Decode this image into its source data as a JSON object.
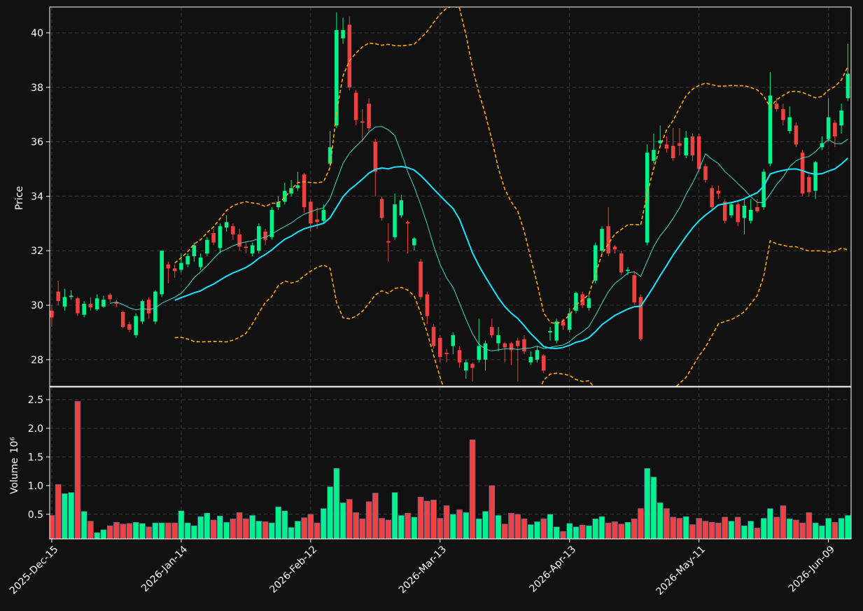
{
  "chart_data": {
    "type": "candlestick",
    "ylabel": "Price",
    "volume_ylabel": "Volume",
    "volume_exponent": "10⁶",
    "up_color": "#00f28a",
    "down_color": "#ee4141",
    "xlim": [
      -0.32,
      123.5
    ],
    "xticks": [
      {
        "value": 0,
        "label": "2025-Dec-15"
      },
      {
        "value": 20,
        "label": "2026-Jan-14"
      },
      {
        "value": 40,
        "label": "2026-Feb-12"
      },
      {
        "value": 60,
        "label": "2026-Mar-13"
      },
      {
        "value": 80,
        "label": "2026-Apr-13"
      },
      {
        "value": 100,
        "label": "2026-May-11"
      },
      {
        "value": 120,
        "label": "2026-Jun-09"
      }
    ],
    "ylim": [
      27.02,
      40.95
    ],
    "yticks": [
      28,
      30,
      32,
      34,
      36,
      38,
      40
    ],
    "volume_ylim": [
      0.07,
      2.72
    ],
    "volume_yticks": [
      0.5,
      {
        "value": 1,
        "label": "1.0"
      },
      1.5,
      {
        "value": 2,
        "label": "2.0"
      },
      2.5
    ],
    "grid": true,
    "moving_averages": [
      {
        "window": 10,
        "color": "#3fd9c8",
        "width": 1
      },
      {
        "window": 20,
        "color": "#14e6ff",
        "width": 2
      }
    ],
    "bollinger": {
      "window": 20,
      "num_std": 2,
      "color": "#ffa500"
    },
    "open": [
      29.8,
      30.5,
      29.95,
      30.3,
      30.25,
      29.65,
      30.05,
      29.85,
      29.95,
      30.38,
      30.1,
      29.75,
      29.3,
      28.9,
      29.4,
      30.2,
      29.4,
      30.4,
      31.5,
      31.35,
      31.3,
      31.5,
      31.8,
      31.4,
      31.9,
      32.65,
      32.1,
      32.85,
      32.9,
      32.6,
      32.15,
      31.9,
      32.0,
      32.7,
      32.5,
      33.6,
      33.8,
      34.1,
      34.3,
      34.8,
      33.8,
      33.15,
      33.1,
      35.2,
      36.6,
      39.8,
      40.3,
      37.8,
      36.75,
      37.4,
      36.0,
      33.9,
      32.35,
      32.5,
      33.3,
      33.05,
      32.2,
      31.6,
      30.4,
      29.2,
      28.8,
      28.25,
      28.5,
      28.35,
      27.6,
      27.85,
      28.0,
      28.0,
      29.2,
      28.6,
      28.6,
      28.6,
      28.7,
      28.75,
      27.9,
      28.0,
      28.15,
      29.0,
      28.7,
      29.4,
      29.1,
      29.8,
      30.4,
      29.9,
      30.9,
      32.0,
      32.9,
      32.15,
      31.9,
      31.25,
      31.1,
      30.3,
      32.3,
      35.3,
      35.95,
      35.9,
      35.85,
      35.95,
      35.5,
      36.2,
      36.2,
      35.1,
      34.3,
      34.2,
      33.8,
      33.3,
      33.7,
      33.2,
      33.1,
      33.6,
      33.6,
      35.2,
      37.4,
      37.2,
      36.4,
      36.6,
      35.6,
      34.7,
      34.2,
      35.8,
      36.1,
      36.7,
      36.6,
      37.6
    ],
    "high": [
      30.0,
      30.9,
      30.6,
      30.55,
      30.3,
      30.15,
      30.3,
      30.4,
      30.35,
      30.45,
      30.2,
      29.8,
      29.4,
      29.7,
      30.2,
      30.3,
      30.55,
      32.0,
      31.6,
      31.5,
      31.9,
      31.9,
      32.3,
      31.9,
      32.5,
      32.8,
      33.0,
      33.3,
      33.0,
      32.8,
      32.3,
      32.3,
      33.0,
      32.8,
      33.6,
      34.0,
      34.5,
      34.6,
      34.9,
      34.85,
      33.9,
      33.6,
      33.7,
      36.4,
      40.75,
      40.55,
      40.6,
      37.9,
      37.2,
      37.6,
      36.1,
      34.0,
      33.0,
      34.1,
      34.05,
      33.1,
      32.5,
      31.7,
      30.5,
      29.3,
      28.9,
      28.4,
      29.0,
      28.5,
      28.0,
      27.9,
      29.5,
      28.7,
      29.5,
      29.2,
      28.65,
      28.65,
      28.8,
      28.9,
      28.3,
      28.5,
      28.2,
      29.2,
      29.5,
      29.5,
      29.9,
      30.5,
      30.5,
      30.4,
      32.3,
      32.9,
      33.6,
      32.2,
      32.0,
      31.4,
      31.2,
      30.4,
      35.9,
      36.3,
      36.6,
      36.2,
      36.5,
      36.5,
      36.4,
      36.3,
      36.3,
      35.2,
      34.4,
      34.4,
      33.9,
      33.8,
      33.8,
      33.9,
      33.9,
      33.9,
      35.0,
      38.55,
      37.6,
      37.4,
      37.3,
      36.7,
      35.7,
      34.8,
      35.3,
      36.2,
      37.6,
      36.8,
      37.4,
      39.6
    ],
    "low": [
      29.2,
      30.0,
      29.8,
      30.2,
      29.6,
      29.55,
      29.8,
      29.8,
      29.9,
      30.1,
      29.95,
      29.15,
      29.0,
      28.8,
      29.3,
      29.5,
      29.3,
      30.3,
      30.8,
      31.0,
      31.2,
      31.4,
      31.6,
      31.3,
      31.8,
      32.2,
      31.9,
      32.7,
      32.4,
      32.0,
      31.9,
      31.8,
      31.9,
      32.2,
      32.4,
      33.5,
      33.7,
      34.0,
      34.2,
      33.4,
      32.7,
      32.8,
      33.0,
      35.1,
      36.5,
      39.6,
      37.9,
      36.6,
      36.0,
      36.4,
      34.0,
      33.1,
      31.6,
      32.4,
      33.2,
      31.9,
      32.0,
      30.2,
      29.3,
      28.4,
      27.9,
      27.9,
      28.2,
      27.7,
      27.3,
      27.2,
      27.9,
      27.6,
      28.8,
      28.3,
      27.9,
      27.8,
      27.2,
      28.2,
      27.8,
      27.9,
      27.5,
      28.7,
      28.6,
      29.1,
      29.0,
      29.7,
      29.9,
      29.8,
      30.8,
      31.9,
      31.8,
      31.9,
      31.1,
      31.1,
      30.0,
      28.7,
      32.2,
      35.2,
      35.8,
      35.6,
      35.3,
      35.5,
      35.4,
      35.3,
      34.9,
      34.5,
      33.5,
      33.9,
      33.0,
      33.2,
      32.9,
      32.6,
      33.0,
      33.4,
      33.5,
      35.1,
      37.1,
      36.6,
      36.3,
      35.8,
      34.0,
      34.0,
      33.9,
      35.7,
      36.0,
      35.8,
      36.3,
      37.5
    ],
    "close": [
      29.55,
      30.15,
      30.3,
      30.35,
      29.7,
      30.05,
      29.92,
      30.25,
      30.2,
      30.22,
      30.05,
      29.2,
      29.1,
      29.6,
      30.15,
      29.7,
      30.5,
      32.0,
      31.35,
      31.25,
      31.55,
      31.8,
      32.2,
      31.75,
      32.4,
      32.3,
      32.9,
      33.05,
      32.6,
      32.15,
      32.1,
      32.2,
      32.9,
      32.4,
      33.5,
      33.8,
      34.2,
      34.3,
      34.4,
      33.6,
      33.0,
      33.05,
      33.5,
      35.8,
      40.1,
      40.1,
      38.0,
      36.8,
      36.7,
      36.5,
      34.9,
      33.2,
      32.3,
      33.7,
      33.85,
      33.0,
      32.45,
      30.3,
      29.6,
      28.5,
      28.1,
      28.2,
      28.9,
      27.9,
      27.9,
      27.7,
      28.5,
      28.6,
      28.9,
      28.9,
      28.45,
      28.35,
      28.5,
      28.3,
      28.1,
      28.35,
      27.6,
      29.05,
      29.4,
      29.25,
      29.7,
      30.45,
      30.0,
      30.25,
      32.2,
      32.8,
      31.9,
      32.05,
      31.2,
      31.3,
      30.1,
      28.75,
      35.6,
      35.7,
      36.05,
      35.75,
      35.4,
      35.85,
      36.15,
      35.5,
      35.0,
      34.6,
      33.6,
      34.1,
      33.1,
      33.7,
      33.05,
      33.65,
      33.5,
      33.45,
      34.9,
      37.7,
      37.2,
      36.8,
      36.9,
      35.9,
      34.1,
      34.15,
      35.25,
      35.95,
      36.9,
      36.2,
      37.15,
      38.5
    ],
    "volume": [
      0.48,
      1.02,
      0.86,
      0.88,
      2.47,
      0.55,
      0.38,
      0.18,
      0.23,
      0.3,
      0.36,
      0.33,
      0.34,
      0.36,
      0.34,
      0.28,
      0.35,
      0.35,
      0.35,
      0.35,
      0.56,
      0.35,
      0.3,
      0.46,
      0.52,
      0.4,
      0.47,
      0.36,
      0.42,
      0.53,
      0.42,
      0.48,
      0.38,
      0.37,
      0.35,
      0.63,
      0.56,
      0.27,
      0.38,
      0.44,
      0.5,
      0.35,
      0.6,
      0.98,
      1.3,
      0.7,
      0.76,
      0.53,
      0.42,
      0.72,
      0.87,
      0.43,
      0.4,
      0.88,
      0.48,
      0.52,
      0.45,
      0.8,
      0.73,
      0.75,
      0.43,
      0.65,
      0.5,
      0.58,
      0.53,
      1.8,
      0.42,
      0.55,
      1.0,
      0.48,
      0.33,
      0.52,
      0.5,
      0.42,
      0.32,
      0.37,
      0.42,
      0.5,
      0.28,
      0.2,
      0.34,
      0.28,
      0.31,
      0.3,
      0.42,
      0.46,
      0.35,
      0.37,
      0.33,
      0.36,
      0.42,
      0.6,
      1.3,
      1.15,
      0.7,
      0.6,
      0.45,
      0.43,
      0.46,
      0.32,
      0.43,
      0.38,
      0.36,
      0.35,
      0.45,
      0.38,
      0.45,
      0.3,
      0.38,
      0.26,
      0.43,
      0.6,
      0.45,
      0.65,
      0.42,
      0.4,
      0.35,
      0.53,
      0.35,
      0.3,
      0.43,
      0.36,
      0.43,
      0.48
    ]
  }
}
